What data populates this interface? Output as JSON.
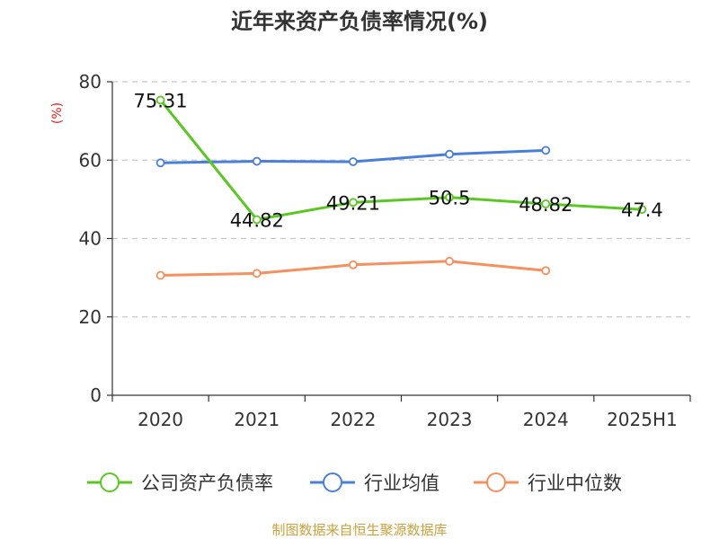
{
  "header": {
    "title": "近年来资产负债率情况(%)"
  },
  "footer": {
    "source": "制图数据来自恒生聚源数据库"
  },
  "chart_data": {
    "type": "line",
    "title": "近年来资产负债率情况(%)",
    "ylabel": "(%)",
    "xlabel": "",
    "categories": [
      "2020",
      "2021",
      "2022",
      "2023",
      "2024",
      "2025H1"
    ],
    "ylim": [
      0,
      80
    ],
    "yticks": [
      "0",
      "20",
      "40",
      "60",
      "80"
    ],
    "grid": true,
    "legend_position": "bottom",
    "series": [
      {
        "name": "公司资产负债率",
        "color": "#5ac724",
        "values": [
          75.31,
          44.82,
          49.21,
          50.5,
          48.82,
          47.4
        ],
        "labels": [
          "75.31",
          "44.82",
          "49.21",
          "50.5",
          "48.82",
          "47.4"
        ]
      },
      {
        "name": "行业均值",
        "color": "#4a7fd9",
        "values": [
          59.3,
          59.7,
          59.6,
          61.5,
          62.5,
          null
        ]
      },
      {
        "name": "行业中位数",
        "color": "#f5905f",
        "values": [
          30.6,
          31.1,
          33.3,
          34.2,
          31.8,
          null
        ]
      }
    ]
  }
}
